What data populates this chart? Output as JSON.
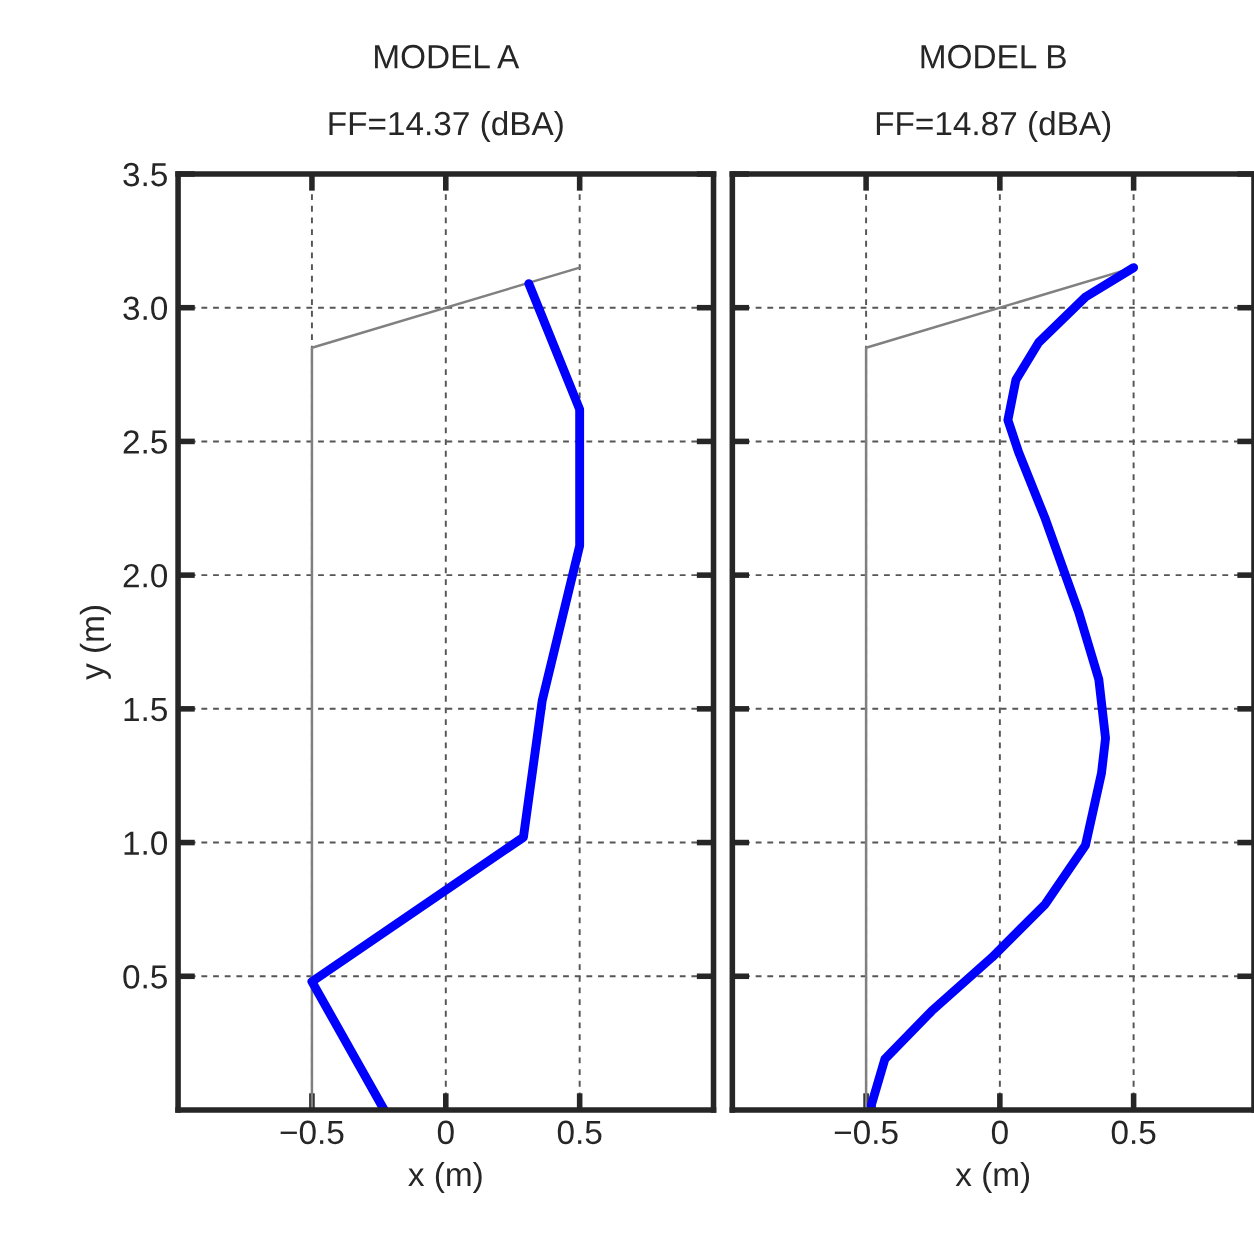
{
  "chart_data": [
    {
      "type": "line",
      "title": "MODEL A",
      "subtitle": "FF=14.37 (dBA)",
      "xlabel": "x (m)",
      "ylabel": "y (m)",
      "xlim": [
        -1,
        1
      ],
      "ylim": [
        0,
        3.5
      ],
      "xticks": [
        {
          "value": -0.5,
          "label": "−0.5"
        },
        0,
        0.5
      ],
      "yticks": [
        {
          "value": 0.5,
          "label": "0.5"
        },
        {
          "value": 1.0,
          "label": "1.0"
        },
        {
          "value": 1.5,
          "label": "1.5"
        },
        {
          "value": 2.0,
          "label": "2.0"
        },
        {
          "value": 2.5,
          "label": "2.5"
        },
        {
          "value": 3.0,
          "label": "3.0"
        },
        {
          "value": 3.5,
          "label": "3.5"
        }
      ],
      "grid": true,
      "line_style": "solid",
      "marker": "none",
      "series": [
        {
          "color": "#808080",
          "x": [
            -0.5,
            -0.5,
            0.5
          ],
          "values": [
            0,
            2.85,
            3.15
          ]
        },
        {
          "color": "#0000ff",
          "x": [
            -0.23,
            -0.5,
            0.29,
            0.36,
            0.5,
            0.5,
            0.31
          ],
          "values": [
            0,
            0.48,
            1.02,
            1.53,
            2.11,
            2.62,
            3.09
          ]
        }
      ]
    },
    {
      "type": "line",
      "title": "MODEL B",
      "subtitle": "FF=14.87 (dBA)",
      "xlabel": "x (m)",
      "xlim": [
        -1,
        0.95
      ],
      "ylim": [
        0,
        3.5
      ],
      "xticks": [
        {
          "value": -0.5,
          "label": "−0.5"
        },
        0,
        0.5
      ],
      "yticks": [
        0.5,
        1.0,
        1.5,
        2.0,
        2.5,
        3.0,
        3.5
      ],
      "tick_labels": "x",
      "grid": true,
      "line_style": "solid",
      "marker": "none",
      "series": [
        {
          "color": "#808080",
          "x": [
            -0.5,
            -0.5,
            0.5
          ],
          "values": [
            0,
            2.85,
            3.15
          ]
        },
        {
          "color": "#0000ff",
          "x": [
            -0.48,
            -0.48,
            -0.43,
            -0.255,
            -0.03,
            0.17,
            0.32,
            0.38,
            0.395,
            0.37,
            0.295,
            0.17,
            0.07,
            0.03,
            0.06,
            0.145,
            0.32,
            0.5
          ],
          "values": [
            0,
            0.02,
            0.19,
            0.37,
            0.57,
            0.77,
            0.99,
            1.26,
            1.39,
            1.61,
            1.86,
            2.21,
            2.46,
            2.58,
            2.73,
            2.87,
            3.04,
            3.15
          ]
        }
      ]
    }
  ]
}
